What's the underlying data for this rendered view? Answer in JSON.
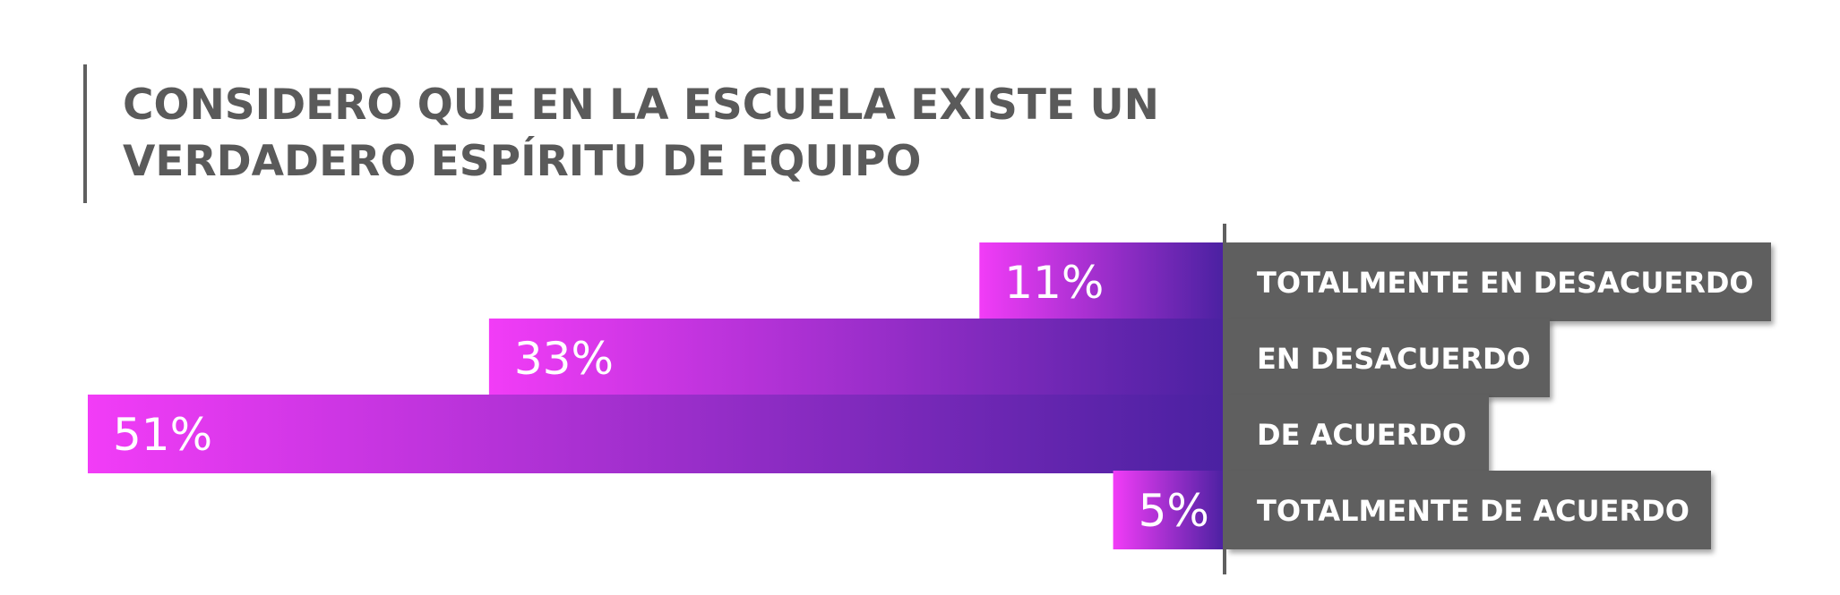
{
  "chart_data": {
    "type": "bar",
    "orientation": "horizontal",
    "title": "CONSIDERO QUE EN LA ESCUELA EXISTE UN VERDADERO ESPÍRITU DE EQUIPO",
    "title_lines": [
      "CONSIDERO QUE EN LA ESCUELA EXISTE UN",
      "VERDADERO ESPÍRITU DE EQUIPO"
    ],
    "categories": [
      "TOTALMENTE EN DESACUERDO",
      "EN DESACUERDO",
      "DE ACUERDO",
      "TOTALMENTE DE ACUERDO"
    ],
    "values": [
      11,
      33,
      51,
      5
    ],
    "value_labels": [
      "11%",
      "33%",
      "51%",
      "5%"
    ],
    "xlim": [
      0,
      51
    ],
    "colors": {
      "bar_gradient_start": "#f23cf7",
      "bar_gradient_end": "#4a21a1",
      "label_box": "#5f5f5f",
      "title_text": "#5a5a5a",
      "accent_rule": "#5f5f5f"
    }
  }
}
